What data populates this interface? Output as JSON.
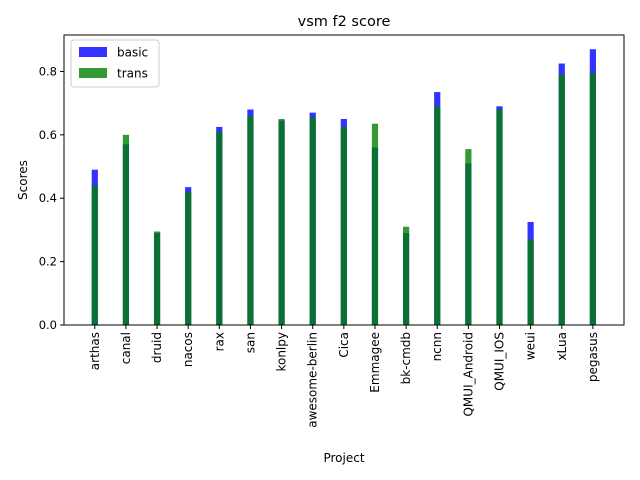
{
  "chart_data": {
    "type": "bar",
    "title": "vsm f2 score",
    "xlabel": "Project",
    "ylabel": "Scores",
    "ylim": [
      0,
      0.915
    ],
    "yticks": [
      0.0,
      0.2,
      0.4,
      0.6,
      0.8
    ],
    "ytick_labels": [
      "0.0",
      "0.2",
      "0.4",
      "0.6",
      "0.8"
    ],
    "grid": false,
    "legend_position": "top-left",
    "categories": [
      "arthas",
      "canal",
      "druid",
      "nacos",
      "rax",
      "san",
      "konlpy",
      "awesome-berlin",
      "Cica",
      "Emmagee",
      "bk-cmdb",
      "ncnn",
      "QMUI_Android",
      "QMUI_IOS",
      "weui",
      "xLua",
      "pegasus"
    ],
    "series": [
      {
        "name": "basic",
        "color": "#0000ff",
        "values": [
          0.49,
          0.57,
          0.29,
          0.435,
          0.625,
          0.68,
          0.645,
          0.67,
          0.65,
          0.56,
          0.29,
          0.735,
          0.51,
          0.69,
          0.325,
          0.825,
          0.87
        ]
      },
      {
        "name": "trans",
        "color": "#008000",
        "values": [
          0.44,
          0.6,
          0.295,
          0.42,
          0.61,
          0.66,
          0.65,
          0.655,
          0.625,
          0.635,
          0.31,
          0.69,
          0.555,
          0.68,
          0.27,
          0.79,
          0.795
        ]
      }
    ]
  }
}
